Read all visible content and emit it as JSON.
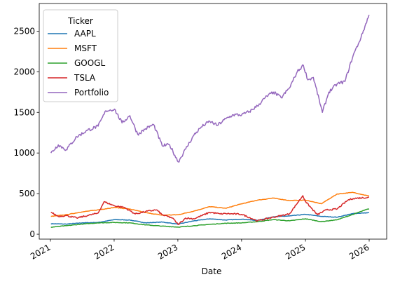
{
  "chart_data": {
    "type": "line",
    "title": "",
    "xlabel": "Date",
    "ylabel": "",
    "xlim": [
      "2021-01-01",
      "2026-01-01"
    ],
    "ylim": [
      -60,
      2840
    ],
    "x_ticks": [
      "2021",
      "2022",
      "2023",
      "2024",
      "2025",
      "2026"
    ],
    "y_ticks": [
      0,
      500,
      1000,
      1500,
      2000,
      2500
    ],
    "grid": false,
    "legend": {
      "title": "Ticker",
      "placement": "top-left"
    },
    "series": [
      {
        "name": "AAPL",
        "color": "#1f77b4",
        "x": [
          "2021-01-04",
          "2021-04-01",
          "2021-07-01",
          "2021-10-01",
          "2022-01-03",
          "2022-04-01",
          "2022-07-01",
          "2022-10-03",
          "2023-01-03",
          "2023-04-03",
          "2023-07-03",
          "2023-10-02",
          "2024-01-02",
          "2024-04-01",
          "2024-07-01",
          "2024-10-01",
          "2025-01-02",
          "2025-04-01",
          "2025-07-01",
          "2025-10-01",
          "2025-12-31"
        ],
        "y": [
          130,
          125,
          140,
          145,
          180,
          175,
          140,
          150,
          125,
          165,
          190,
          175,
          185,
          170,
          215,
          225,
          245,
          220,
          210,
          255,
          265
        ]
      },
      {
        "name": "MSFT",
        "color": "#ff7f0e",
        "x": [
          "2021-01-04",
          "2021-04-01",
          "2021-07-01",
          "2021-10-01",
          "2022-01-03",
          "2022-04-01",
          "2022-07-01",
          "2022-10-03",
          "2023-01-03",
          "2023-04-03",
          "2023-07-03",
          "2023-10-02",
          "2024-01-02",
          "2024-04-01",
          "2024-07-01",
          "2024-10-01",
          "2025-01-02",
          "2025-04-01",
          "2025-07-01",
          "2025-10-01",
          "2025-12-31"
        ],
        "y": [
          220,
          240,
          275,
          300,
          330,
          310,
          265,
          235,
          240,
          285,
          340,
          320,
          375,
          420,
          445,
          415,
          420,
          375,
          495,
          515,
          470
        ]
      },
      {
        "name": "GOOGL",
        "color": "#2ca02c",
        "x": [
          "2021-01-04",
          "2021-04-01",
          "2021-07-01",
          "2021-10-01",
          "2022-01-03",
          "2022-04-01",
          "2022-07-01",
          "2022-10-03",
          "2023-01-03",
          "2023-04-03",
          "2023-07-03",
          "2023-10-02",
          "2024-01-02",
          "2024-04-01",
          "2024-07-01",
          "2024-10-01",
          "2025-01-02",
          "2025-04-01",
          "2025-07-01",
          "2025-10-01",
          "2025-12-31"
        ],
        "y": [
          87,
          105,
          125,
          140,
          145,
          140,
          115,
          100,
          88,
          105,
          122,
          135,
          140,
          155,
          180,
          165,
          190,
          155,
          178,
          245,
          315
        ]
      },
      {
        "name": "TSLA",
        "color": "#d62728",
        "x": [
          "2021-01-04",
          "2021-02-15",
          "2021-04-01",
          "2021-06-01",
          "2021-08-02",
          "2021-10-01",
          "2021-11-04",
          "2022-01-03",
          "2022-03-01",
          "2022-05-02",
          "2022-07-01",
          "2022-09-01",
          "2022-10-03",
          "2022-12-01",
          "2023-01-03",
          "2023-02-15",
          "2023-04-03",
          "2023-07-03",
          "2023-09-01",
          "2023-10-02",
          "2024-01-02",
          "2024-04-01",
          "2024-07-01",
          "2024-10-01",
          "2024-12-17",
          "2025-01-02",
          "2025-03-10",
          "2025-05-01",
          "2025-07-01",
          "2025-09-01",
          "2025-10-01",
          "2025-12-31"
        ],
        "y": [
          270,
          220,
          230,
          200,
          230,
          260,
          400,
          350,
          330,
          250,
          280,
          300,
          240,
          200,
          120,
          200,
          190,
          270,
          250,
          255,
          245,
          165,
          210,
          250,
          475,
          400,
          240,
          300,
          310,
          420,
          440,
          455
        ]
      },
      {
        "name": "Portfolio",
        "color": "#9467bd",
        "x": [
          "2021-01-04",
          "2021-02-15",
          "2021-04-01",
          "2021-06-01",
          "2021-08-02",
          "2021-10-01",
          "2021-11-15",
          "2022-01-03",
          "2022-02-15",
          "2022-04-01",
          "2022-05-16",
          "2022-07-01",
          "2022-08-15",
          "2022-10-03",
          "2022-11-15",
          "2023-01-03",
          "2023-02-15",
          "2023-04-03",
          "2023-05-15",
          "2023-07-03",
          "2023-08-15",
          "2023-10-02",
          "2023-11-15",
          "2024-01-02",
          "2024-02-15",
          "2024-04-01",
          "2024-05-15",
          "2024-07-01",
          "2024-08-15",
          "2024-10-01",
          "2024-11-15",
          "2024-12-20",
          "2025-01-15",
          "2025-02-15",
          "2025-04-08",
          "2025-05-15",
          "2025-07-01",
          "2025-08-15",
          "2025-10-01",
          "2025-11-15",
          "2025-12-31"
        ],
        "y": [
          1000,
          1100,
          1040,
          1200,
          1280,
          1330,
          1520,
          1540,
          1370,
          1460,
          1230,
          1300,
          1350,
          1090,
          1100,
          890,
          1050,
          1220,
          1320,
          1390,
          1340,
          1420,
          1470,
          1470,
          1510,
          1580,
          1680,
          1750,
          1680,
          1800,
          2000,
          2080,
          1900,
          1930,
          1500,
          1750,
          1850,
          1880,
          2200,
          2420,
          2700
        ]
      }
    ]
  }
}
